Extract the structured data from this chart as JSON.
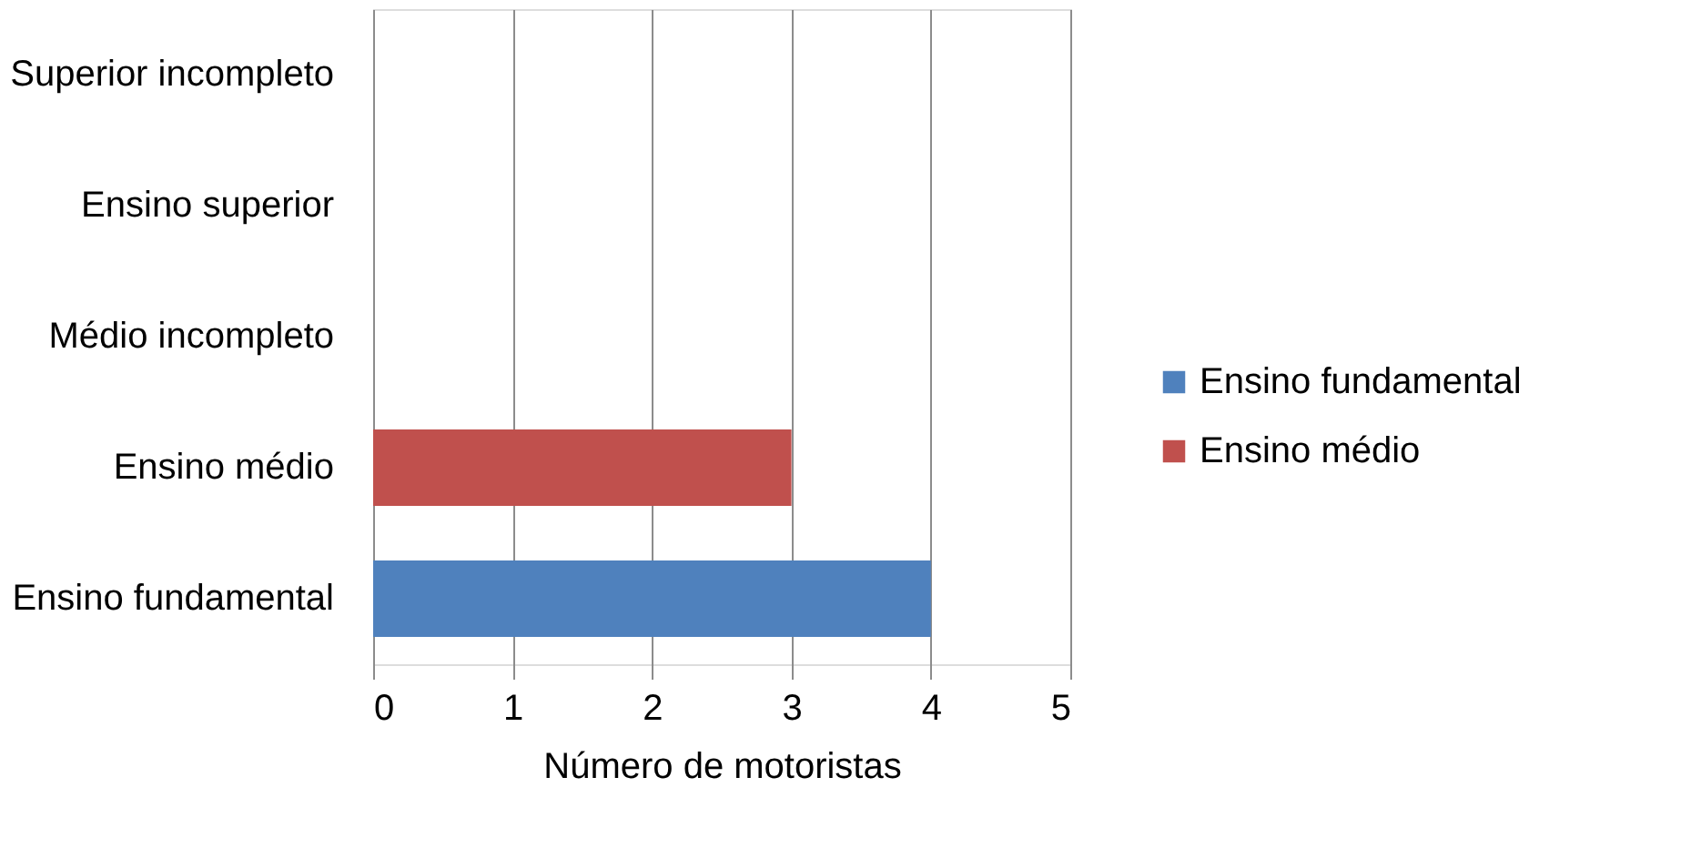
{
  "chart_data": {
    "type": "bar",
    "orientation": "horizontal",
    "xlabel": "Número de motoristas",
    "categories": [
      "Superior incompleto",
      "Ensino superior",
      "Médio incompleto",
      "Ensino médio",
      "Ensino fundamental"
    ],
    "series": [
      {
        "name": "Ensino fundamental",
        "color": "#4f81bd",
        "values": [
          null,
          null,
          null,
          null,
          4
        ]
      },
      {
        "name": "Ensino médio",
        "color": "#c0504d",
        "values": [
          null,
          null,
          null,
          3,
          null
        ]
      }
    ],
    "xlim": [
      0,
      5
    ],
    "xticks": [
      0,
      1,
      2,
      3,
      4,
      5
    ],
    "grid": "x",
    "legend": "right"
  }
}
